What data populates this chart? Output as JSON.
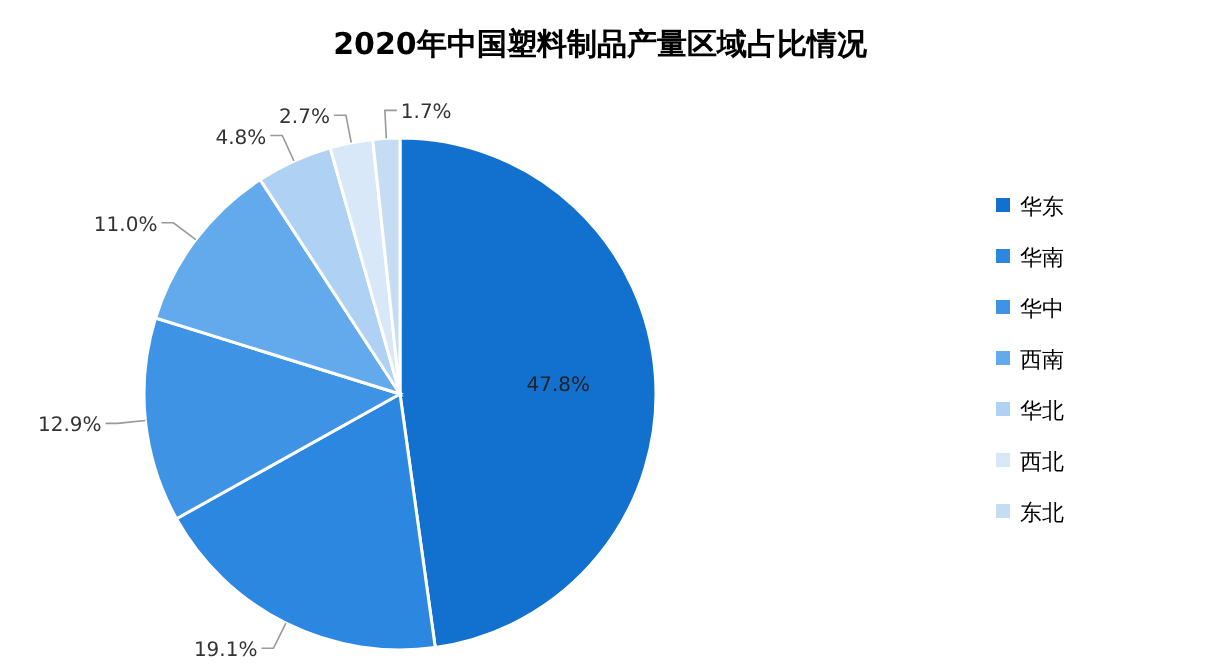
{
  "chart_data": {
    "type": "pie",
    "title": "2020年中国塑料制品产量区域占比情况",
    "categories": [
      "华东",
      "华南",
      "华中",
      "西南",
      "华北",
      "西北",
      "东北"
    ],
    "values": [
      47.8,
      19.1,
      12.9,
      11.0,
      4.8,
      2.7,
      1.7
    ],
    "colors": [
      "#1270cf",
      "#2b87e0",
      "#3f93e4",
      "#63aaec",
      "#afd2f4",
      "#d8e8f9",
      "#c6dcf3"
    ],
    "value_labels": [
      "47.8%",
      "19.1%",
      "12.9%",
      "11.0%",
      "4.8%",
      "2.7%",
      "1.7%"
    ],
    "legend": "right"
  }
}
